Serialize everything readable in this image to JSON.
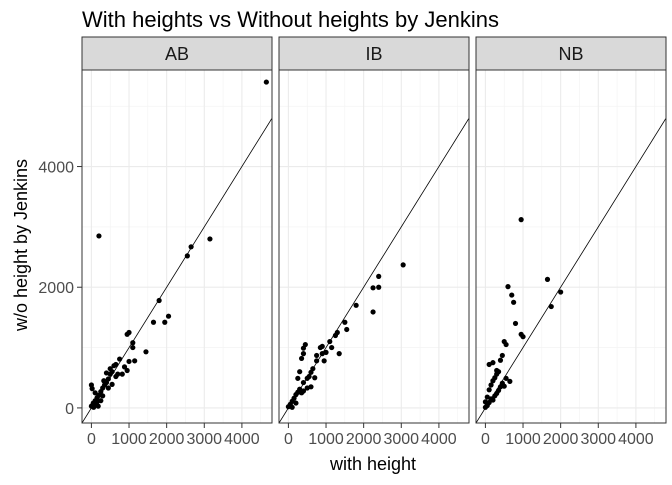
{
  "chart_data": {
    "type": "scatter",
    "title": "With heights vs Without heights by Jenkins",
    "xlabel": "with height",
    "ylabel": "w/o height by Jenkins",
    "xlim": [
      -250,
      4800
    ],
    "ylim": [
      -250,
      5600
    ],
    "x_ticks": [
      0,
      1000,
      2000,
      3000,
      4000
    ],
    "x_tick_labels": [
      "0",
      "1000",
      "2000",
      "3000",
      "4000"
    ],
    "y_ticks": [
      0,
      2000,
      4000
    ],
    "y_tick_labels": [
      "0",
      "2000",
      "4000"
    ],
    "grid": true,
    "reference_line": {
      "slope": 1,
      "intercept": 0
    },
    "panels": [
      {
        "name": "AB",
        "points": [
          [
            4650,
            5400
          ],
          [
            3150,
            2800
          ],
          [
            2650,
            2670
          ],
          [
            2550,
            2520
          ],
          [
            1800,
            1780
          ],
          [
            2050,
            1520
          ],
          [
            1950,
            1420
          ],
          [
            1650,
            1420
          ],
          [
            1450,
            930
          ],
          [
            1100,
            1080
          ],
          [
            1000,
            1250
          ],
          [
            950,
            1220
          ],
          [
            1150,
            780
          ],
          [
            1100,
            1000
          ],
          [
            1000,
            770
          ],
          [
            950,
            620
          ],
          [
            750,
            810
          ],
          [
            700,
            560
          ],
          [
            650,
            720
          ],
          [
            600,
            700
          ],
          [
            550,
            600
          ],
          [
            500,
            560
          ],
          [
            450,
            480
          ],
          [
            400,
            420
          ],
          [
            350,
            380
          ],
          [
            300,
            330
          ],
          [
            250,
            270
          ],
          [
            200,
            210
          ],
          [
            150,
            170
          ],
          [
            100,
            120
          ],
          [
            50,
            80
          ],
          [
            0,
            30
          ],
          [
            0,
            380
          ],
          [
            20,
            320
          ],
          [
            100,
            250
          ],
          [
            150,
            100
          ],
          [
            200,
            2850
          ],
          [
            300,
            200
          ],
          [
            450,
            330
          ],
          [
            550,
            390
          ],
          [
            650,
            520
          ],
          [
            820,
            560
          ],
          [
            880,
            680
          ],
          [
            500,
            650
          ],
          [
            400,
            580
          ],
          [
            250,
            120
          ],
          [
            120,
            60
          ],
          [
            60,
            10
          ],
          [
            180,
            30
          ],
          [
            330,
            450
          ]
        ]
      },
      {
        "name": "IB",
        "points": [
          [
            3050,
            2370
          ],
          [
            2400,
            2180
          ],
          [
            2400,
            2000
          ],
          [
            2250,
            1990
          ],
          [
            2250,
            1590
          ],
          [
            1800,
            1700
          ],
          [
            1500,
            1420
          ],
          [
            1550,
            1300
          ],
          [
            1350,
            900
          ],
          [
            1250,
            1200
          ],
          [
            1150,
            1000
          ],
          [
            1000,
            920
          ],
          [
            950,
            780
          ],
          [
            900,
            1020
          ],
          [
            750,
            870
          ],
          [
            700,
            500
          ],
          [
            600,
            590
          ],
          [
            500,
            490
          ],
          [
            400,
            420
          ],
          [
            300,
            310
          ],
          [
            250,
            260
          ],
          [
            200,
            220
          ],
          [
            150,
            160
          ],
          [
            100,
            110
          ],
          [
            50,
            60
          ],
          [
            0,
            20
          ],
          [
            450,
            1050
          ],
          [
            400,
            990
          ],
          [
            400,
            900
          ],
          [
            350,
            820
          ],
          [
            300,
            600
          ],
          [
            250,
            490
          ],
          [
            600,
            350
          ],
          [
            500,
            330
          ],
          [
            400,
            280
          ],
          [
            350,
            250
          ],
          [
            200,
            80
          ],
          [
            100,
            10
          ],
          [
            850,
            1000
          ],
          [
            650,
            650
          ],
          [
            550,
            520
          ],
          [
            750,
            780
          ],
          [
            900,
            900
          ],
          [
            1100,
            1100
          ],
          [
            1300,
            1250
          ]
        ]
      },
      {
        "name": "NB",
        "points": [
          [
            950,
            3120
          ],
          [
            1650,
            2130
          ],
          [
            2000,
            1920
          ],
          [
            1750,
            1680
          ],
          [
            600,
            2010
          ],
          [
            700,
            1870
          ],
          [
            750,
            1750
          ],
          [
            800,
            1400
          ],
          [
            950,
            1220
          ],
          [
            1000,
            1180
          ],
          [
            550,
            1050
          ],
          [
            500,
            1100
          ],
          [
            450,
            870
          ],
          [
            400,
            790
          ],
          [
            350,
            600
          ],
          [
            300,
            560
          ],
          [
            250,
            500
          ],
          [
            200,
            450
          ],
          [
            150,
            380
          ],
          [
            100,
            300
          ],
          [
            50,
            180
          ],
          [
            0,
            100
          ],
          [
            100,
            720
          ],
          [
            200,
            750
          ],
          [
            300,
            620
          ],
          [
            550,
            490
          ],
          [
            450,
            410
          ],
          [
            400,
            350
          ],
          [
            350,
            290
          ],
          [
            250,
            200
          ],
          [
            150,
            150
          ],
          [
            100,
            90
          ],
          [
            50,
            40
          ],
          [
            0,
            10
          ],
          [
            650,
            440
          ],
          [
            500,
            360
          ],
          [
            300,
            240
          ],
          [
            200,
            130
          ]
        ]
      }
    ]
  }
}
